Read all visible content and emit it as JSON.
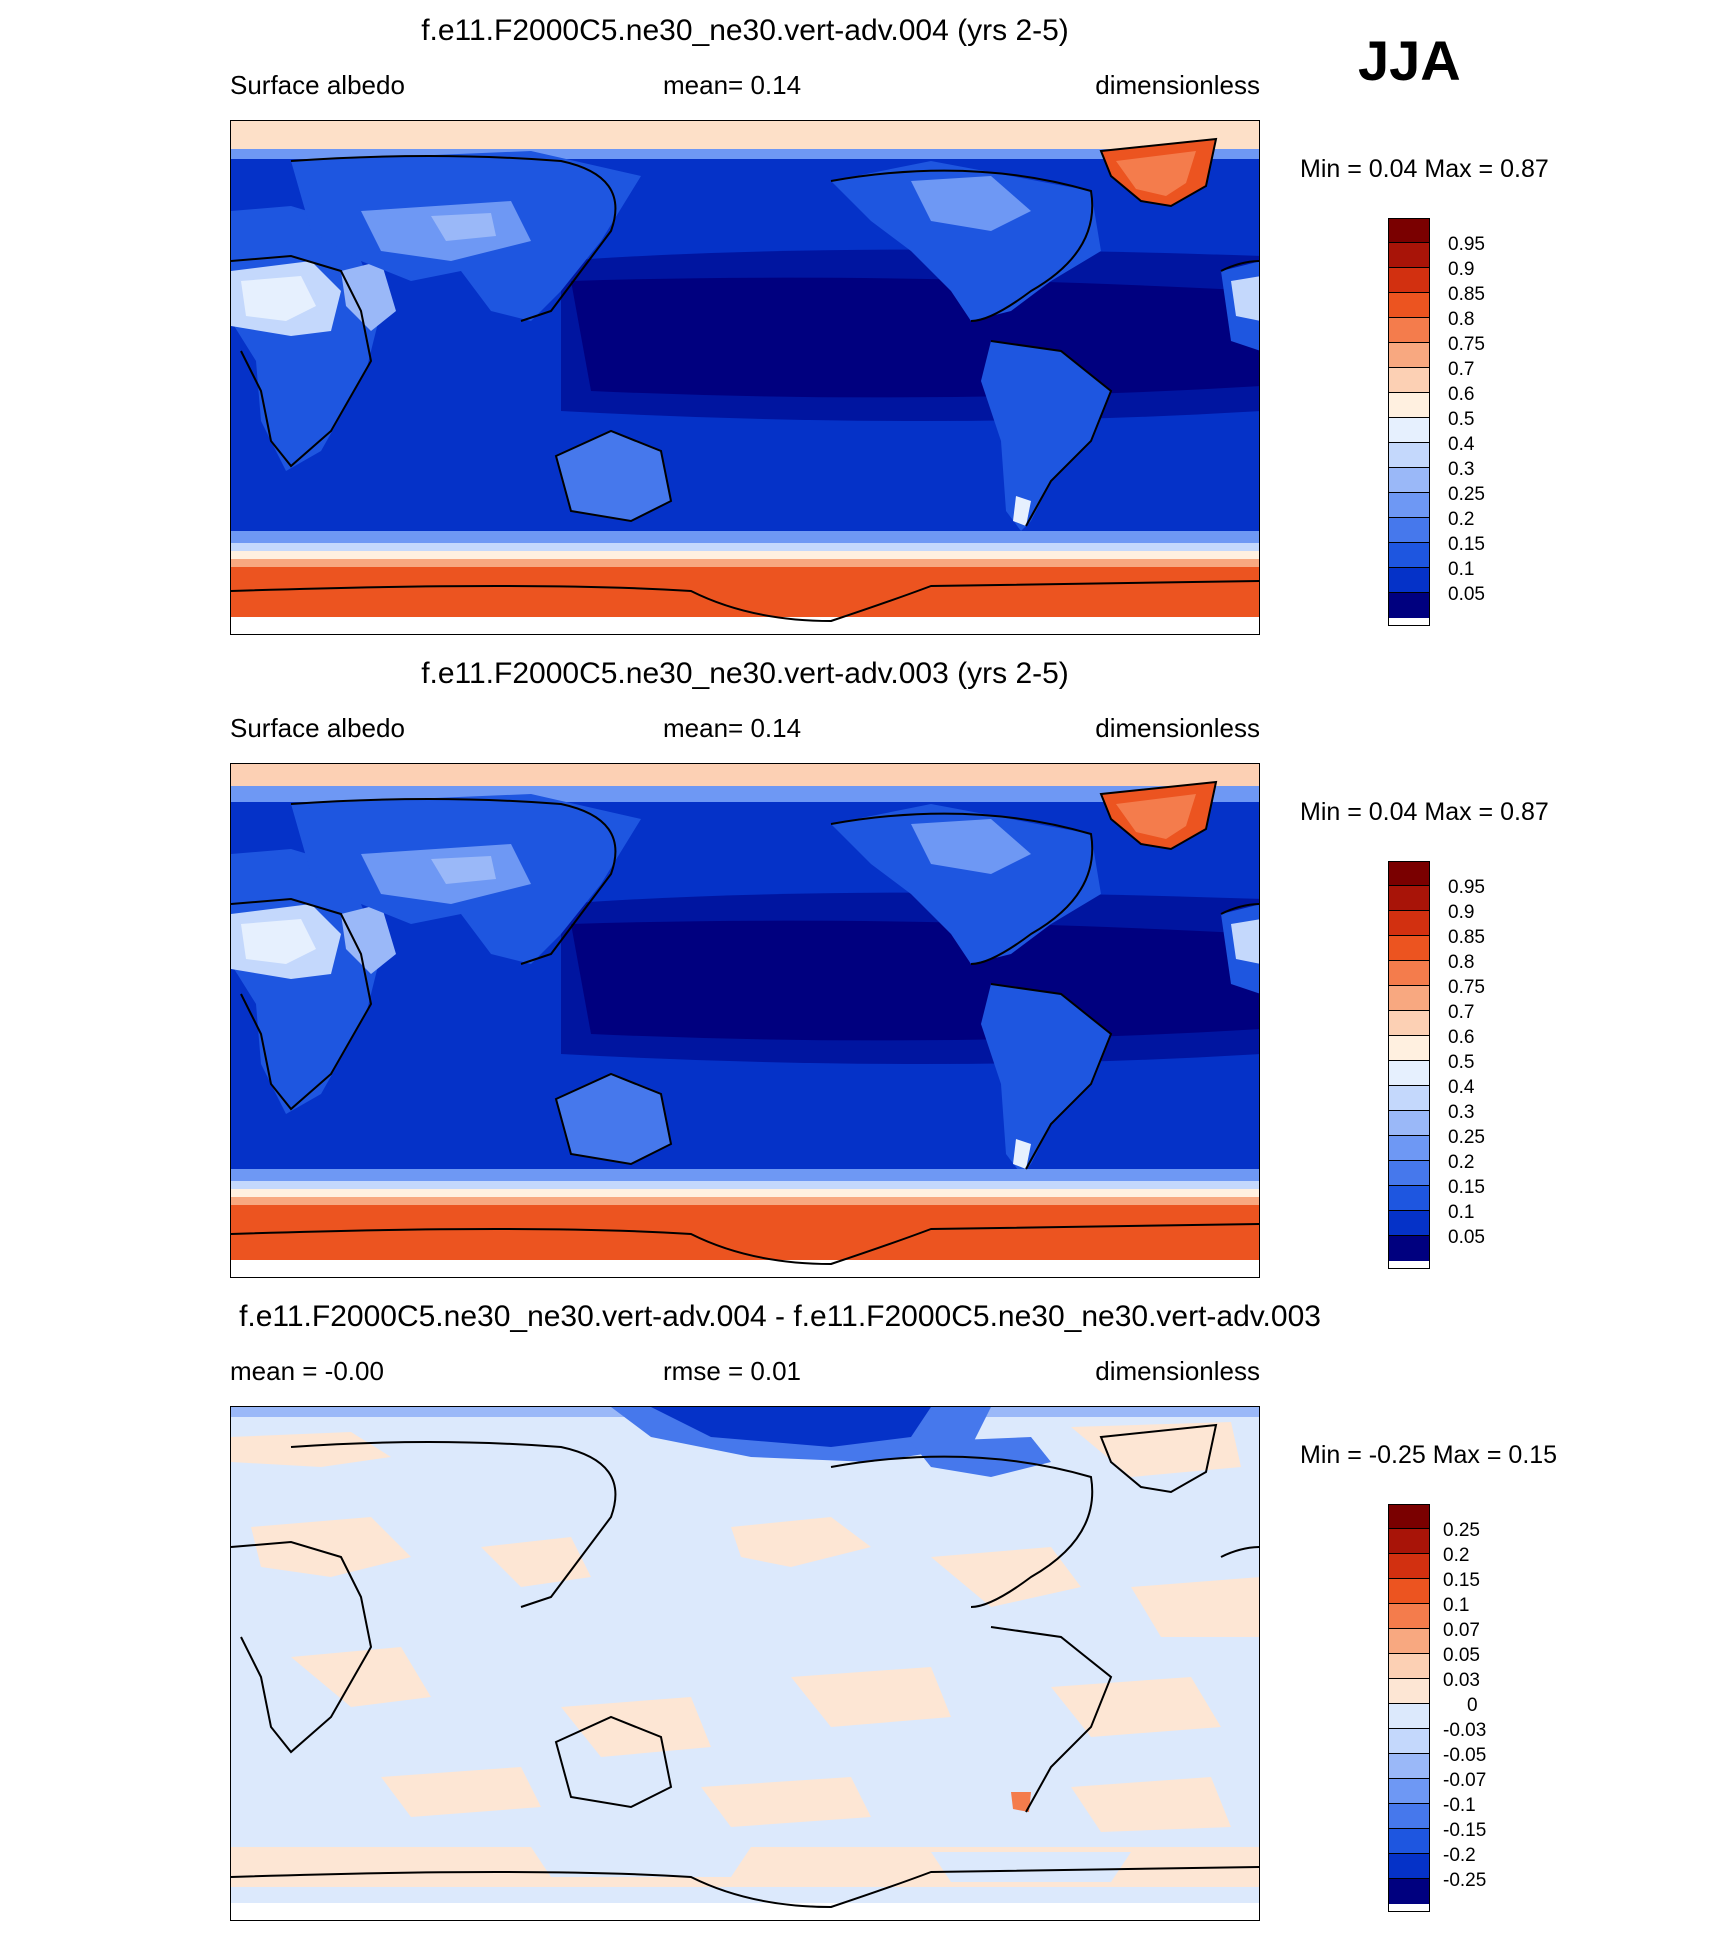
{
  "season": "JJA",
  "colors": {
    "abs_levels": [
      "#00007f",
      "#0015a0",
      "#0532c8",
      "#1e56e0",
      "#4678ec",
      "#6e98f4",
      "#9ab8f8",
      "#c4d8fc",
      "#e6f0fe",
      "#fff0e0",
      "#fcd0b4",
      "#f8a880",
      "#f47c4c",
      "#ec5420",
      "#d23010",
      "#a81408",
      "#7a0000"
    ],
    "diff_levels": [
      "#00007f",
      "#0015a0",
      "#0532c8",
      "#1e56e0",
      "#4678ec",
      "#6e98f4",
      "#9ab8f8",
      "#c4d8fc",
      "#dce9fc",
      "#fde6d4",
      "#fcd0b4",
      "#f8a880",
      "#f47c4c",
      "#ec5420",
      "#d23010",
      "#a81408",
      "#7a0000"
    ],
    "coastline": "#000000"
  },
  "panels": [
    {
      "title": "f.e11.F2000C5.ne30_ne30.vert-adv.004 (yrs 2-5)",
      "left_label": "Surface albedo",
      "center_label": "mean=   0.14",
      "right_label": "dimensionless",
      "minmax": "Min =    0.04 Max =    0.87",
      "colorbar_labels": [
        "0.95",
        "0.9",
        "0.85",
        "0.8",
        "0.75",
        "0.7",
        "0.6",
        "0.5",
        "0.4",
        "0.3",
        "0.25",
        "0.2",
        "0.15",
        "0.1",
        "0.05"
      ]
    },
    {
      "title": "f.e11.F2000C5.ne30_ne30.vert-adv.003 (yrs 2-5)",
      "left_label": "Surface albedo",
      "center_label": "mean=   0.14",
      "right_label": "dimensionless",
      "minmax": "Min =    0.04 Max =    0.87",
      "colorbar_labels": [
        "0.95",
        "0.9",
        "0.85",
        "0.8",
        "0.75",
        "0.7",
        "0.6",
        "0.5",
        "0.4",
        "0.3",
        "0.25",
        "0.2",
        "0.15",
        "0.1",
        "0.05"
      ]
    },
    {
      "title": "f.e11.F2000C5.ne30_ne30.vert-adv.004 - f.e11.F2000C5.ne30_ne30.vert-adv.003",
      "left_label": "mean =   -0.00",
      "center_label": "rmse =    0.01",
      "right_label": "dimensionless",
      "minmax": "Min =  -0.25 Max =    0.15",
      "colorbar_labels": [
        "0.25",
        "0.2",
        "0.15",
        "0.1",
        "0.07",
        "0.05",
        "0.03",
        "0",
        "-0.03",
        "-0.05",
        "-0.07",
        "-0.1",
        "-0.15",
        "-0.2",
        "-0.25"
      ]
    }
  ]
}
